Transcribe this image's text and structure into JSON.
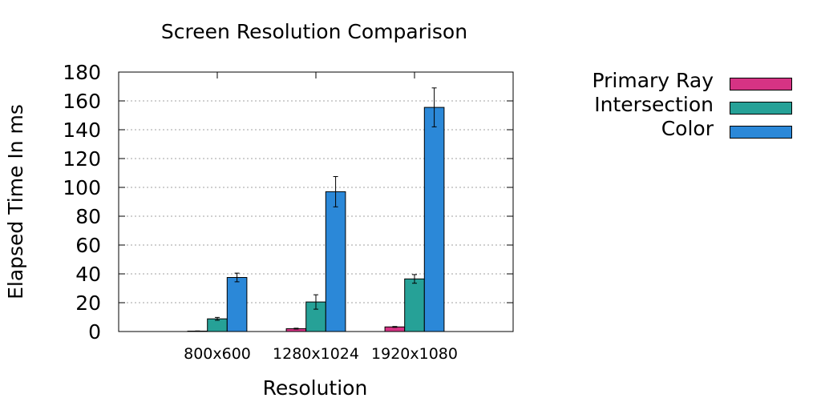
{
  "chart_data": {
    "type": "bar",
    "title": "Screen Resolution Comparison",
    "xlabel": "Resolution",
    "ylabel": "Elapsed Time In ms",
    "categories": [
      "800x600",
      "1280x1024",
      "1920x1080"
    ],
    "ylim": [
      0,
      180
    ],
    "yticks": [
      0,
      20,
      40,
      60,
      80,
      100,
      120,
      140,
      160,
      180
    ],
    "grid": true,
    "legend_position": "right",
    "error_bars": true,
    "series": [
      {
        "name": "Primary Ray",
        "color": "#d63384",
        "values": [
          0.3,
          2,
          3.2
        ],
        "errors": [
          0.1,
          0.3,
          0.3
        ]
      },
      {
        "name": "Intersection",
        "color": "#26a197",
        "values": [
          8.8,
          20.5,
          36.5
        ],
        "errors": [
          1,
          5,
          3
        ]
      },
      {
        "name": "Color",
        "color": "#2b88d8",
        "values": [
          37.5,
          97,
          155.5
        ],
        "errors": [
          3,
          10.5,
          13.5
        ]
      }
    ]
  }
}
